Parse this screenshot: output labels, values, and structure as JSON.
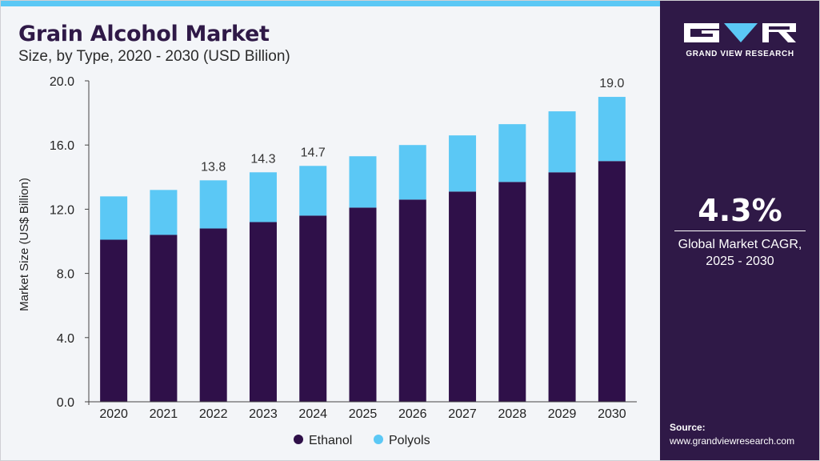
{
  "header": {
    "title": "Grain Alcohol Market",
    "subtitle": "Size, by Type, 2020 - 2030 (USD Billion)"
  },
  "sidebar": {
    "logo_text": "GRAND VIEW RESEARCH",
    "cagr_value": "4.3%",
    "cagr_label_line1": "Global Market CAGR,",
    "cagr_label_line2": "2025 - 2030",
    "source_title": "Source:",
    "source_url": "www.grandviewresearch.com"
  },
  "colors": {
    "ethanol": "#2f1049",
    "polyols": "#5bc8f5",
    "sidebar_bg": "#2f1947",
    "title": "#2f1947",
    "accent": "#5bc8f5"
  },
  "chart_data": {
    "type": "bar",
    "stacked": true,
    "categories": [
      "2020",
      "2021",
      "2022",
      "2023",
      "2024",
      "2025",
      "2026",
      "2027",
      "2028",
      "2029",
      "2030"
    ],
    "series": [
      {
        "name": "Ethanol",
        "values": [
          10.1,
          10.4,
          10.8,
          11.2,
          11.6,
          12.1,
          12.6,
          13.1,
          13.7,
          14.3,
          15.0
        ]
      },
      {
        "name": "Polyols",
        "values": [
          2.7,
          2.8,
          3.0,
          3.1,
          3.1,
          3.2,
          3.4,
          3.5,
          3.6,
          3.8,
          4.0
        ]
      }
    ],
    "totals_labels": {
      "2022": "13.8",
      "2023": "14.3",
      "2024": "14.7",
      "2030": "19.0"
    },
    "ylabel": "Market Size (US$ Billion)",
    "xlabel": "",
    "ylim": [
      0,
      20
    ],
    "yticks": [
      "0.0",
      "4.0",
      "8.0",
      "12.0",
      "16.0",
      "20.0"
    ],
    "legend_position": "bottom",
    "grid": false
  }
}
